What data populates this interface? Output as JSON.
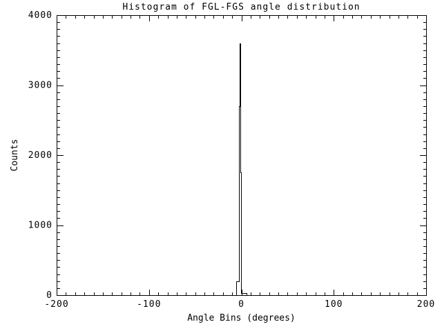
{
  "figure": {
    "background_color": "#ffffff",
    "line_color": "#000000"
  },
  "chart_data": {
    "type": "bar",
    "subtype": "histogram-outline",
    "title": "Histogram of FGL-FGS angle distribution",
    "xlabel": "Angle Bins (degrees)",
    "ylabel": "Counts",
    "xlim": [
      -200,
      200
    ],
    "ylim": [
      0,
      4000
    ],
    "x_major_ticks": [
      -200,
      -100,
      0,
      100,
      200
    ],
    "x_tick_labels": [
      "-200",
      "-100",
      "0",
      "100",
      "200"
    ],
    "x_minor_step": 10,
    "y_major_ticks": [
      0,
      1000,
      2000,
      3000,
      4000
    ],
    "y_tick_labels": [
      "0",
      "1000",
      "2000",
      "3000",
      "4000"
    ],
    "y_minor_step": 100,
    "grid": false,
    "frame": "box-with-inward-ticks",
    "series_color": "#000000",
    "bins": [
      {
        "x0": -5.6,
        "x1": -2.6,
        "count": 200
      },
      {
        "x0": -2.6,
        "x1": -1.9,
        "count": 2700
      },
      {
        "x0": -1.9,
        "x1": -1.1,
        "count": 3600
      },
      {
        "x0": -1.1,
        "x1": -0.4,
        "count": 1750
      },
      {
        "x0": -0.4,
        "x1": 5.6,
        "count": 30
      }
    ],
    "baseline_count": 0,
    "peak_count": 3600
  }
}
